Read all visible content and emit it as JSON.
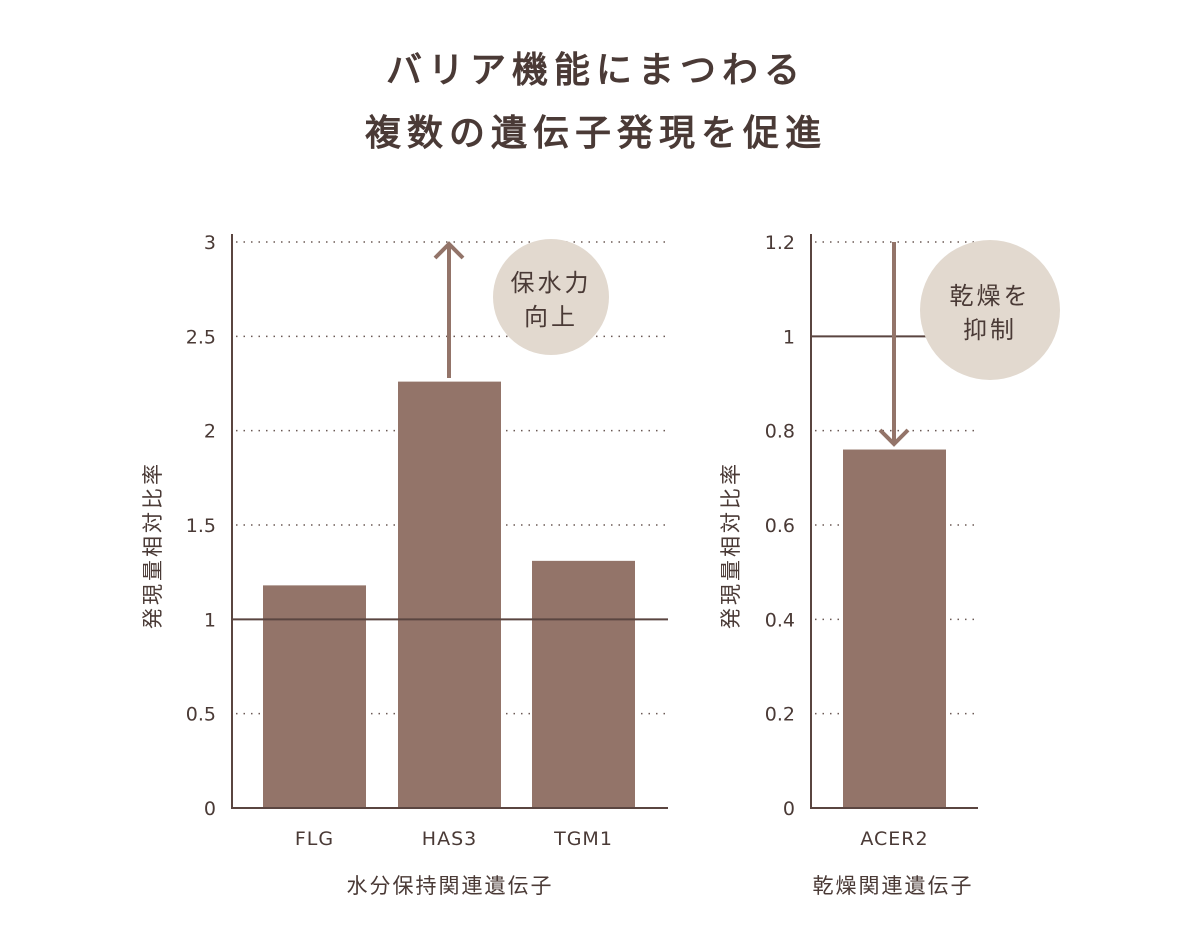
{
  "title_lines": [
    "バリア機能にまつわる",
    "複数の遺伝子発現を促進"
  ],
  "colors": {
    "bar": "#937469",
    "text": "#4a3a36",
    "axis": "#5a4540",
    "note_circle": "#e2d9cf",
    "arrow": "#937469"
  },
  "chart_data": [
    {
      "type": "bar",
      "categories": [
        "FLG",
        "HAS3",
        "TGM1"
      ],
      "values": [
        1.18,
        2.26,
        1.31
      ],
      "xlabel": "水分保持関連遺伝子",
      "ylabel": "発現量相対比率",
      "ylim": [
        0,
        3
      ],
      "yticks": [
        "0",
        "0.5",
        "1",
        "1.5",
        "2",
        "2.5",
        "3"
      ],
      "grid": "dotted horizontal",
      "reference_line": 1,
      "annotation": {
        "lines": [
          "保水力",
          "向上"
        ],
        "arrow": "up"
      }
    },
    {
      "type": "bar",
      "categories": [
        "ACER2"
      ],
      "values": [
        0.76
      ],
      "xlabel": "乾燥関連遺伝子",
      "ylabel": "発現量相対比率",
      "ylim": [
        0,
        1.2
      ],
      "yticks": [
        "0",
        "0.2",
        "0.4",
        "0.6",
        "0.8",
        "1",
        "1.2"
      ],
      "grid": "dotted horizontal",
      "reference_line": 1,
      "annotation": {
        "lines": [
          "乾燥を",
          "抑制"
        ],
        "arrow": "down"
      }
    }
  ]
}
